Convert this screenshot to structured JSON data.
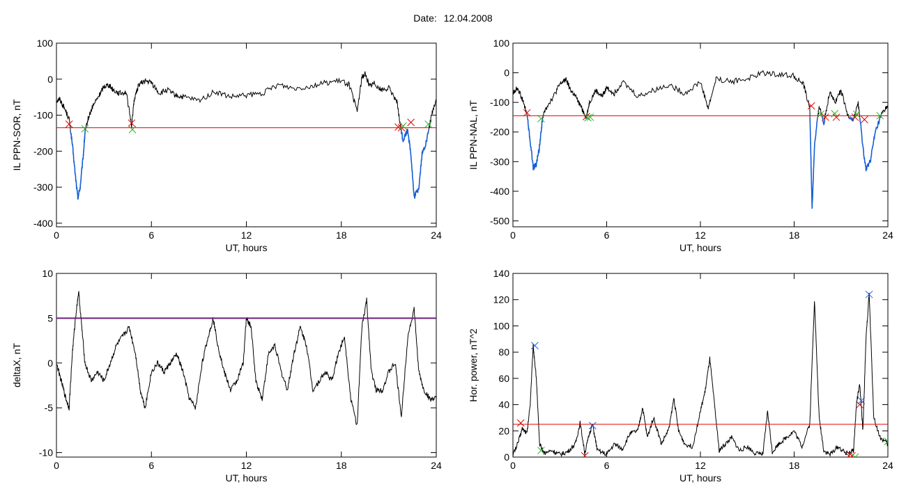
{
  "header": {
    "date_label": "Date:",
    "date_value": "12.04.2008"
  },
  "colors": {
    "threshold_red": "#e00000",
    "blue_segment": "#1560d4",
    "purple_threshold": "#6a1f7a",
    "green_marker": "#22b322",
    "blue_marker": "#2060e0",
    "trace": "#000000"
  },
  "chart_data": [
    {
      "type": "line",
      "ylabel": "IL PPN-SOR, nT",
      "xlabel": "UT, hours",
      "xlim": [
        0,
        24
      ],
      "ylim": [
        -410,
        100
      ],
      "xticks": [
        0,
        6,
        12,
        18,
        24
      ],
      "yticks": [
        -400,
        -300,
        -200,
        -100,
        0,
        100
      ],
      "grid": false,
      "threshold": {
        "value": -135,
        "color": "#e00000"
      },
      "series": [
        {
          "values_x": [
            0,
            0.2,
            0.5,
            0.8,
            1.0,
            1.2,
            1.35,
            1.5,
            1.7,
            1.8,
            2.0,
            2.3,
            2.7,
            3.0,
            3.3,
            3.6,
            4.0,
            4.4,
            4.75,
            4.9,
            5.2,
            5.6,
            6.0,
            6.5,
            7.0,
            7.5,
            8.0,
            9.0,
            10.0,
            11.0,
            12.0,
            13.0,
            14.0,
            15.0,
            16.0,
            17.0,
            18.0,
            18.5,
            19.0,
            19.3,
            19.5,
            19.8,
            20.1,
            20.5,
            21.0,
            21.5,
            21.7,
            21.9,
            22.2,
            22.4,
            22.6,
            22.9,
            23.1,
            23.4,
            23.7,
            24.0
          ],
          "values_y": [
            -60,
            -55,
            -80,
            -110,
            -180,
            -270,
            -330,
            -300,
            -210,
            -150,
            -110,
            -75,
            -45,
            -20,
            -15,
            -30,
            -40,
            -35,
            -130,
            -60,
            -15,
            -5,
            -10,
            -40,
            -30,
            -45,
            -50,
            -60,
            -35,
            -50,
            -45,
            -40,
            -15,
            -25,
            -20,
            -10,
            -5,
            -15,
            -90,
            5,
            15,
            -20,
            -10,
            -30,
            -25,
            -60,
            -120,
            -170,
            -140,
            -210,
            -330,
            -300,
            -210,
            -170,
            -100,
            -55
          ]
        }
      ],
      "markers": [
        {
          "x": 0.8,
          "y": -125,
          "color": "red"
        },
        {
          "x": 1.8,
          "y": -138,
          "color": "green"
        },
        {
          "x": 4.75,
          "y": -122,
          "color": "red"
        },
        {
          "x": 4.8,
          "y": -140,
          "color": "green"
        },
        {
          "x": 21.6,
          "y": -133,
          "color": "red"
        },
        {
          "x": 21.8,
          "y": -135,
          "color": "red"
        },
        {
          "x": 21.9,
          "y": -130,
          "color": "green"
        },
        {
          "x": 22.4,
          "y": -120,
          "color": "red"
        },
        {
          "x": 23.5,
          "y": -125,
          "color": "green"
        }
      ]
    },
    {
      "type": "line",
      "ylabel": "IL PPN-NAL, nT",
      "xlabel": "UT, hours",
      "xlim": [
        0,
        24
      ],
      "ylim": [
        -520,
        100
      ],
      "xticks": [
        0,
        6,
        12,
        18,
        24
      ],
      "yticks": [
        -500,
        -400,
        -300,
        -200,
        -100,
        0,
        100
      ],
      "grid": false,
      "threshold": {
        "value": -145,
        "color": "#e00000"
      },
      "series": [
        {
          "values_x": [
            0,
            0.3,
            0.6,
            0.9,
            1.1,
            1.3,
            1.5,
            1.7,
            1.9,
            2.2,
            2.6,
            3.0,
            3.4,
            3.7,
            4.0,
            4.4,
            4.7,
            4.9,
            5.3,
            5.7,
            6.0,
            6.5,
            7.0,
            8.0,
            9.0,
            10.0,
            11.0,
            12.0,
            12.5,
            13.0,
            14.0,
            15.0,
            16.0,
            17.0,
            18.0,
            18.6,
            19.0,
            19.15,
            19.3,
            19.6,
            19.9,
            20.3,
            20.6,
            21.0,
            21.4,
            21.8,
            22.1,
            22.4,
            22.6,
            22.9,
            23.2,
            23.6,
            24.0
          ],
          "values_y": [
            -70,
            -50,
            -90,
            -140,
            -230,
            -320,
            -310,
            -250,
            -150,
            -110,
            -80,
            -40,
            -20,
            -60,
            -80,
            -120,
            -150,
            -100,
            -60,
            -80,
            -50,
            -70,
            -30,
            -80,
            -60,
            -40,
            -70,
            -30,
            -120,
            -20,
            -30,
            -20,
            0,
            -5,
            -10,
            -40,
            -120,
            -460,
            -250,
            -110,
            -170,
            -60,
            -100,
            -60,
            -140,
            -160,
            -100,
            -250,
            -330,
            -290,
            -200,
            -140,
            -110
          ]
        }
      ],
      "markers": [
        {
          "x": 0.9,
          "y": -135,
          "color": "red"
        },
        {
          "x": 1.8,
          "y": -155,
          "color": "green"
        },
        {
          "x": 4.7,
          "y": -148,
          "color": "red"
        },
        {
          "x": 4.8,
          "y": -152,
          "color": "green"
        },
        {
          "x": 4.95,
          "y": -150,
          "color": "green"
        },
        {
          "x": 19.1,
          "y": -112,
          "color": "red"
        },
        {
          "x": 19.7,
          "y": -140,
          "color": "green"
        },
        {
          "x": 20.0,
          "y": -150,
          "color": "red"
        },
        {
          "x": 20.6,
          "y": -138,
          "color": "green"
        },
        {
          "x": 20.7,
          "y": -150,
          "color": "red"
        },
        {
          "x": 21.9,
          "y": -150,
          "color": "red"
        },
        {
          "x": 22.0,
          "y": -140,
          "color": "green"
        },
        {
          "x": 22.5,
          "y": -158,
          "color": "red"
        },
        {
          "x": 23.5,
          "y": -145,
          "color": "green"
        }
      ]
    },
    {
      "type": "line",
      "ylabel": "deltaX, nT",
      "xlabel": "UT, hours",
      "xlim": [
        0,
        24
      ],
      "ylim": [
        -10.5,
        10
      ],
      "xticks": [
        0,
        6,
        12,
        18,
        24
      ],
      "yticks": [
        -10,
        -5,
        0,
        5,
        10
      ],
      "grid": false,
      "threshold": {
        "value": 5,
        "color": "#6a1f7a"
      },
      "series": [
        {
          "values_x": [
            0,
            0.3,
            0.6,
            0.8,
            1.0,
            1.2,
            1.4,
            1.6,
            1.8,
            2.2,
            2.6,
            3.0,
            3.4,
            3.8,
            4.2,
            4.6,
            5.0,
            5.3,
            5.6,
            6.0,
            6.4,
            6.8,
            7.2,
            7.6,
            8.0,
            8.4,
            8.8,
            9.2,
            9.6,
            9.9,
            10.2,
            10.6,
            11.0,
            11.4,
            11.8,
            12.0,
            12.3,
            12.6,
            13.0,
            13.4,
            13.8,
            14.2,
            14.6,
            15.0,
            15.4,
            15.8,
            16.2,
            16.6,
            17.0,
            17.4,
            17.8,
            18.2,
            18.6,
            19.0,
            19.3,
            19.6,
            19.9,
            20.2,
            20.6,
            21.0,
            21.4,
            21.8,
            22.2,
            22.6,
            22.9,
            23.2,
            23.6,
            24.0
          ],
          "values_y": [
            0,
            -2,
            -4,
            -5,
            1,
            5,
            8,
            4,
            0,
            -2,
            -1,
            -2,
            0,
            2,
            3,
            4,
            1,
            -3,
            -5,
            -1,
            0,
            -1,
            0,
            1,
            -1,
            -4,
            -5,
            0,
            3,
            5,
            2,
            -1,
            -3,
            -2,
            0,
            5,
            4,
            -2,
            -4,
            1,
            2,
            -1,
            -3,
            1,
            4,
            2,
            -3,
            -2,
            -1,
            -2,
            1,
            3,
            -4,
            -7,
            4,
            7,
            -1,
            -3,
            -3,
            -1,
            0,
            -6,
            3,
            6,
            -1,
            -3,
            -4,
            -4
          ]
        }
      ],
      "markers": []
    },
    {
      "type": "line",
      "ylabel": "Hor. power, nT^2",
      "xlabel": "UT, hours",
      "xlim": [
        0,
        24
      ],
      "ylim": [
        0,
        140
      ],
      "xticks": [
        0,
        6,
        12,
        18,
        24
      ],
      "yticks": [
        0,
        20,
        40,
        60,
        80,
        100,
        120,
        140
      ],
      "grid": false,
      "threshold": {
        "value": 25,
        "color": "#e00000"
      },
      "series": [
        {
          "values_x": [
            0,
            0.3,
            0.6,
            0.9,
            1.1,
            1.3,
            1.5,
            1.7,
            2.0,
            2.5,
            3.0,
            3.5,
            4.0,
            4.3,
            4.6,
            4.9,
            5.1,
            5.4,
            6.0,
            6.5,
            7.0,
            7.5,
            8.0,
            8.3,
            8.6,
            9.0,
            9.5,
            10.0,
            10.3,
            10.6,
            11.0,
            11.5,
            12.0,
            12.3,
            12.6,
            12.9,
            13.2,
            13.6,
            14.0,
            14.5,
            15.0,
            15.5,
            16.0,
            16.3,
            16.6,
            17.0,
            17.5,
            18.0,
            18.5,
            19.0,
            19.3,
            19.6,
            19.9,
            20.3,
            20.8,
            21.3,
            21.8,
            22.0,
            22.2,
            22.4,
            22.6,
            22.8,
            23.1,
            23.5,
            24.0
          ],
          "values_y": [
            2,
            10,
            22,
            18,
            40,
            85,
            60,
            10,
            3,
            5,
            2,
            4,
            10,
            26,
            3,
            18,
            25,
            5,
            2,
            10,
            6,
            18,
            20,
            38,
            15,
            30,
            10,
            22,
            45,
            20,
            10,
            8,
            35,
            50,
            75,
            40,
            5,
            10,
            15,
            5,
            8,
            3,
            2,
            35,
            4,
            10,
            15,
            20,
            8,
            25,
            120,
            30,
            5,
            2,
            8,
            3,
            5,
            42,
            55,
            20,
            90,
            125,
            30,
            15,
            10
          ]
        }
      ],
      "markers": [
        {
          "x": 0.5,
          "y": 26,
          "color": "red"
        },
        {
          "x": 1.4,
          "y": 85,
          "color": "blue"
        },
        {
          "x": 1.8,
          "y": 5,
          "color": "green"
        },
        {
          "x": 4.6,
          "y": 1,
          "color": "red"
        },
        {
          "x": 5.1,
          "y": 24,
          "color": "blue"
        },
        {
          "x": 21.5,
          "y": 1,
          "color": "red"
        },
        {
          "x": 21.7,
          "y": 1,
          "color": "red"
        },
        {
          "x": 21.9,
          "y": 0,
          "color": "green"
        },
        {
          "x": 22.2,
          "y": 40,
          "color": "red"
        },
        {
          "x": 22.3,
          "y": 43,
          "color": "blue"
        },
        {
          "x": 22.8,
          "y": 124,
          "color": "blue"
        },
        {
          "x": 24.0,
          "y": 12,
          "color": "green"
        }
      ]
    }
  ]
}
